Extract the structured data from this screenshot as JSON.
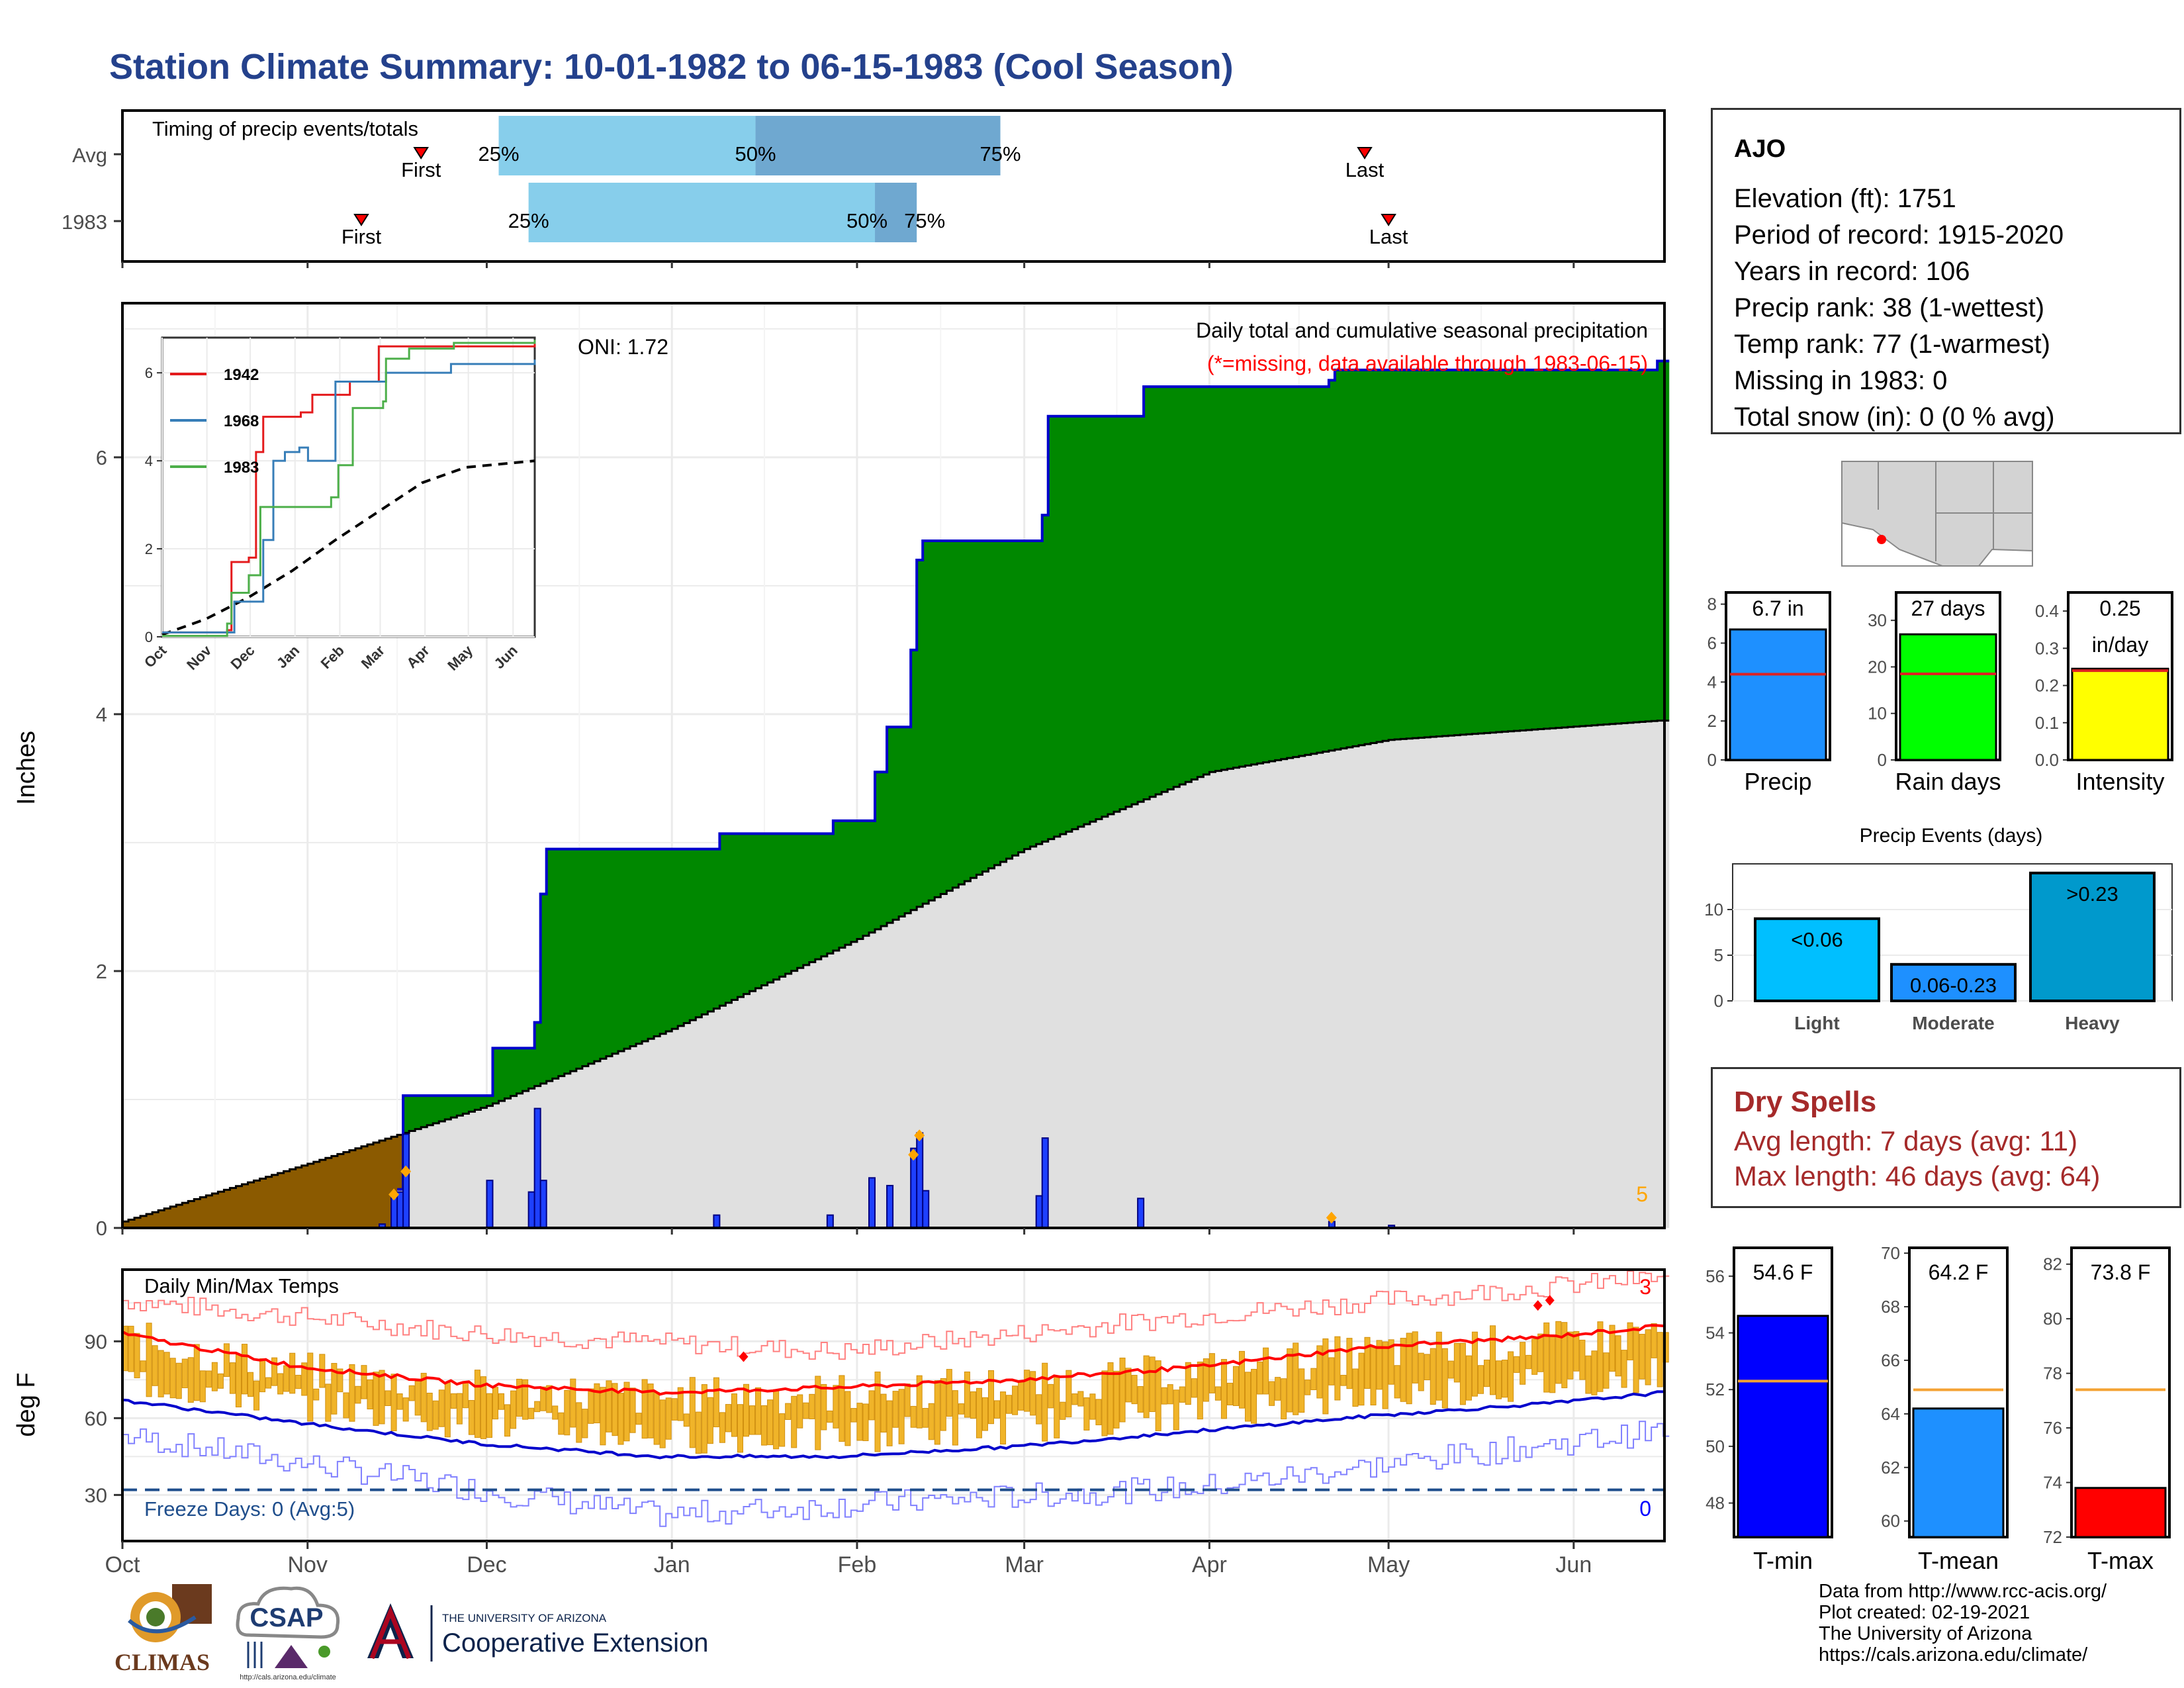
{
  "title": "Station Climate Summary: 10-01-1982 to 06-15-1983 (Cool Season)",
  "timing": {
    "label": "Timing of precip events/totals",
    "rows": [
      {
        "name": "Avg",
        "first_label": "First",
        "last_label": "Last",
        "first": "Nov 20",
        "last": "Apr 27",
        "p25": "Dec 3",
        "p50": "Jan 15",
        "p75": "Feb 25"
      },
      {
        "name": "1983",
        "first_label": "First",
        "last_label": "Last",
        "first": "Nov 10",
        "last": "May 1",
        "p25": "Dec 8",
        "p50": "Feb 4",
        "p75": "Feb 11"
      }
    ],
    "pct_labels": [
      "25%",
      "50%",
      "75%"
    ]
  },
  "precip": {
    "ylabel": "Inches",
    "yticks": [
      "0",
      "2",
      "4",
      "6"
    ],
    "oni": "ONI: 1.72",
    "header": "Daily total and cumulative seasonal precipitation",
    "subheader": "(*=missing, data available through 1983-06-15)",
    "count_label": "5",
    "colors": {
      "above": "#008800",
      "below": "#8b5a00",
      "normal_fill": "#e0e0e0",
      "cumulative_line": "#0000cc",
      "daily_bar": "#1e40ff",
      "marker": "#ffa500"
    }
  },
  "inset": {
    "yticks": [
      "0",
      "2",
      "4",
      "6"
    ],
    "months": [
      "Oct",
      "Nov",
      "Dec",
      "Jan",
      "Feb",
      "Mar",
      "Apr",
      "May",
      "Jun"
    ],
    "legend": [
      {
        "name": "1942",
        "color": "#e41a1c"
      },
      {
        "name": "1968",
        "color": "#377eb8"
      },
      {
        "name": "1983",
        "color": "#4daf4a"
      }
    ]
  },
  "months": [
    "Oct",
    "Nov",
    "Dec",
    "Jan",
    "Feb",
    "Mar",
    "Apr",
    "May",
    "Jun"
  ],
  "temps": {
    "ylabel": "deg F",
    "yticks": [
      "30",
      "60",
      "90"
    ],
    "header": "Daily Min/Max Temps",
    "freeze": "Freeze Days: 0 (Avg:5)",
    "high_count": "3",
    "low_count": "0"
  },
  "station": {
    "name": "AJO",
    "lines": [
      "Elevation (ft): 1751",
      "Period of record: 1915-2020",
      "Years in record: 106",
      "Precip rank: 38 (1-wettest)",
      "Temp rank: 77 (1-warmest)",
      "Missing in 1983: 0",
      "Total snow (in): 0 (0 % avg)"
    ]
  },
  "summary_bars": [
    {
      "label": "Precip",
      "value_label": "6.7 in",
      "value": 6.7,
      "avg": 4.4,
      "ymax": 8.6,
      "ticks": [
        "0",
        "2",
        "4",
        "6",
        "8"
      ],
      "color": "#1e90ff"
    },
    {
      "label": "Rain days",
      "value_label": "27 days",
      "value": 27,
      "avg": 18.5,
      "ymax": 36,
      "ticks": [
        "0",
        "10",
        "20",
        "30"
      ],
      "color": "#00ff00"
    },
    {
      "label": "Intensity",
      "value_label": "0.25",
      "value_label2": "in/day",
      "value": 0.245,
      "avg": 0.24,
      "ymax": 0.45,
      "ticks": [
        "0.0",
        "0.1",
        "0.2",
        "0.3",
        "0.4"
      ],
      "color": "#ffff00"
    }
  ],
  "events": {
    "title": "Precip Events (days)",
    "ticks": [
      "0",
      "5",
      "10"
    ],
    "bars": [
      {
        "label": "Light",
        "inner": "<0.06",
        "value": 9,
        "color": "#00bfff"
      },
      {
        "label": "Moderate",
        "inner": "0.06-0.23",
        "value": 4,
        "color": "#1e90ff"
      },
      {
        "label": "Heavy",
        "inner": ">0.23",
        "value": 14,
        "color": "#0099cc"
      }
    ]
  },
  "dry_spells": {
    "title": "Dry Spells",
    "lines": [
      "Avg length: 7 days (avg: 11)",
      "Max length: 46 days (avg: 64)"
    ]
  },
  "temp_bars": [
    {
      "label": "T-min",
      "value_label": "54.6 F",
      "value": 54.6,
      "avg": 52.3,
      "ymin": 46.8,
      "ymax": 57.0,
      "ticks": [
        "48",
        "50",
        "52",
        "54",
        "56"
      ],
      "color": "#0000ff"
    },
    {
      "label": "T-mean",
      "value_label": "64.2 F",
      "value": 64.2,
      "avg": 64.9,
      "ymin": 59.4,
      "ymax": 70.2,
      "ticks": [
        "60",
        "62",
        "64",
        "66",
        "68",
        "70"
      ],
      "color": "#1e90ff"
    },
    {
      "label": "T-max",
      "value_label": "73.8 F",
      "value": 73.8,
      "avg": 77.4,
      "ymin": 72.0,
      "ymax": 82.6,
      "ticks": [
        "72",
        "74",
        "76",
        "78",
        "80",
        "82"
      ],
      "color": "#ff0000"
    }
  ],
  "credits": [
    "Data from http://www.rcc-acis.org/",
    "Plot created: 02-19-2021",
    "The University of Arizona",
    "https://cals.arizona.edu/climate/"
  ],
  "logos": {
    "climas": "CLIMAS",
    "csap": "CSAP",
    "csap_url": "http://cals.arizona.edu/climate",
    "ua_small": "THE UNIVERSITY OF ARIZONA",
    "ua_big": "Cooperative Extension"
  },
  "chart_data": [
    {
      "type": "area",
      "title": "Daily total and cumulative seasonal precipitation",
      "ylabel": "Inches",
      "ylim": [
        0,
        7.2
      ],
      "x_range": [
        "1982-10-01",
        "1983-06-15"
      ],
      "cumulative_1983": [
        [
          "1982-11-16",
          0.3
        ],
        [
          "1982-11-17",
          1.03
        ],
        [
          "1982-12-01",
          1.03
        ],
        [
          "1982-12-02",
          1.4
        ],
        [
          "1982-12-08",
          1.4
        ],
        [
          "1982-12-09",
          1.6
        ],
        [
          "1982-12-10",
          2.6
        ],
        [
          "1982-12-11",
          2.95
        ],
        [
          "1983-01-08",
          2.95
        ],
        [
          "1983-01-09",
          3.07
        ],
        [
          "1983-01-27",
          3.07
        ],
        [
          "1983-01-28",
          3.17
        ],
        [
          "1983-02-03",
          3.17
        ],
        [
          "1983-02-04",
          3.55
        ],
        [
          "1983-02-06",
          3.9
        ],
        [
          "1983-02-10",
          4.5
        ],
        [
          "1983-02-11",
          5.2
        ],
        [
          "1983-02-12",
          5.35
        ],
        [
          "1983-03-03",
          5.35
        ],
        [
          "1983-03-04",
          5.55
        ],
        [
          "1983-03-05",
          6.32
        ],
        [
          "1983-03-20",
          6.32
        ],
        [
          "1983-03-21",
          6.55
        ],
        [
          "1983-04-21",
          6.6
        ],
        [
          "1983-04-22",
          6.68
        ],
        [
          "1983-06-15",
          6.75
        ]
      ],
      "normal_cumulative": [
        [
          "1982-10-01",
          0.05
        ],
        [
          "1982-11-01",
          0.5
        ],
        [
          "1982-12-01",
          0.95
        ],
        [
          "1983-01-01",
          1.55
        ],
        [
          "1983-02-01",
          2.25
        ],
        [
          "1983-03-01",
          2.95
        ],
        [
          "1983-04-01",
          3.55
        ],
        [
          "1983-05-01",
          3.8
        ],
        [
          "1983-06-15",
          3.95
        ]
      ],
      "daily_precip": [
        [
          "1982-11-13",
          0.03
        ],
        [
          "1982-11-15",
          0.25
        ],
        [
          "1982-11-16",
          0.28
        ],
        [
          "1982-11-17",
          0.73
        ],
        [
          "1982-12-01",
          0.37
        ],
        [
          "1982-12-08",
          0.28
        ],
        [
          "1982-12-09",
          0.93
        ],
        [
          "1982-12-10",
          0.37
        ],
        [
          "1983-01-08",
          0.1
        ],
        [
          "1983-01-27",
          0.1
        ],
        [
          "1983-02-03",
          0.39
        ],
        [
          "1983-02-06",
          0.33
        ],
        [
          "1983-02-10",
          0.62
        ],
        [
          "1983-02-11",
          0.74
        ],
        [
          "1983-02-12",
          0.29
        ],
        [
          "1983-03-03",
          0.25
        ],
        [
          "1983-03-04",
          0.7
        ],
        [
          "1983-03-20",
          0.23
        ],
        [
          "1983-04-21",
          0.05
        ],
        [
          "1983-05-01",
          0.02
        ]
      ]
    },
    {
      "type": "line",
      "title": "",
      "ylim": [
        0,
        6.8
      ],
      "series": [
        {
          "name": "1942",
          "points": [
            [
              0,
              0.1
            ],
            [
              45,
              0.15
            ],
            [
              48,
              1.7
            ],
            [
              60,
              1.8
            ],
            [
              65,
              4.2
            ],
            [
              70,
              5.0
            ],
            [
              85,
              5.0
            ],
            [
              96,
              5.1
            ],
            [
              104,
              5.5
            ],
            [
              130,
              5.8
            ],
            [
              150,
              6.6
            ],
            [
              215,
              6.6
            ],
            [
              258,
              6.7
            ]
          ]
        },
        {
          "name": "1968",
          "points": [
            [
              0,
              0.1
            ],
            [
              50,
              0.8
            ],
            [
              70,
              2.2
            ],
            [
              77,
              4.0
            ],
            [
              85,
              4.2
            ],
            [
              95,
              4.3
            ],
            [
              101,
              4.0
            ],
            [
              120,
              5.8
            ],
            [
              155,
              6.0
            ],
            [
              200,
              6.2
            ],
            [
              258,
              6.3
            ]
          ]
        },
        {
          "name": "1983",
          "points": [
            [
              0,
              0.02
            ],
            [
              45,
              0.3
            ],
            [
              48,
              1.0
            ],
            [
              60,
              1.4
            ],
            [
              68,
              2.95
            ],
            [
              98,
              2.95
            ],
            [
              117,
              3.17
            ],
            [
              122,
              3.9
            ],
            [
              132,
              5.2
            ],
            [
              153,
              5.35
            ],
            [
              155,
              6.32
            ],
            [
              171,
              6.55
            ],
            [
              202,
              6.68
            ],
            [
              258,
              6.75
            ]
          ]
        }
      ],
      "normal": [
        [
          0,
          0.05
        ],
        [
          30,
          0.4
        ],
        [
          60,
          0.9
        ],
        [
          90,
          1.5
        ],
        [
          120,
          2.2
        ],
        [
          150,
          2.85
        ],
        [
          180,
          3.5
        ],
        [
          210,
          3.85
        ],
        [
          258,
          4.0
        ]
      ]
    },
    {
      "type": "line",
      "title": "Daily Min/Max Temps",
      "ylabel": "deg F",
      "ylim": [
        12,
        118
      ],
      "avg_max": [
        [
          0,
          93
        ],
        [
          30,
          80
        ],
        [
          60,
          73
        ],
        [
          90,
          70
        ],
        [
          120,
          72
        ],
        [
          150,
          75
        ],
        [
          180,
          80
        ],
        [
          210,
          88
        ],
        [
          240,
          92
        ],
        [
          258,
          96
        ]
      ],
      "avg_min": [
        [
          0,
          67
        ],
        [
          30,
          58
        ],
        [
          60,
          50
        ],
        [
          90,
          45
        ],
        [
          120,
          45
        ],
        [
          150,
          49
        ],
        [
          180,
          55
        ],
        [
          210,
          61
        ],
        [
          240,
          66
        ],
        [
          258,
          70
        ]
      ],
      "record_max": [
        [
          0,
          106
        ],
        [
          60,
          93
        ],
        [
          120,
          86
        ],
        [
          180,
          100
        ],
        [
          258,
          115
        ]
      ],
      "record_min": [
        [
          0,
          53
        ],
        [
          60,
          32
        ],
        [
          90,
          22
        ],
        [
          120,
          26
        ],
        [
          180,
          33
        ],
        [
          258,
          55
        ]
      ],
      "freeze_line": 32
    }
  ]
}
